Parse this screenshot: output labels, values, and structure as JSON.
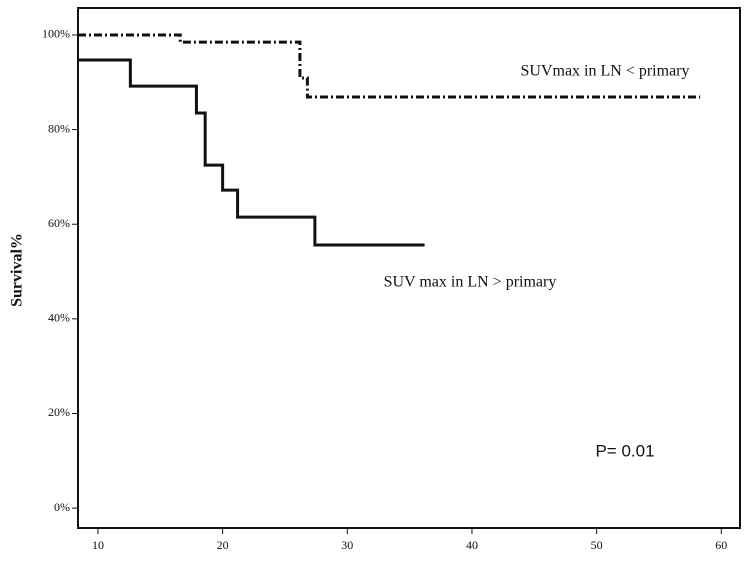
{
  "chart_data": {
    "type": "step",
    "y_label": "Survival%",
    "xlim": [
      8.4,
      61.5
    ],
    "xticks": [
      10,
      20,
      30,
      40,
      50,
      60
    ],
    "ylim": [
      -4.2,
      105.7
    ],
    "yticks": [
      {
        "value": 0,
        "label": "0%"
      },
      {
        "value": 20,
        "label": "20%"
      },
      {
        "value": 40,
        "label": "40%"
      },
      {
        "value": 60,
        "label": "60%"
      },
      {
        "value": 80,
        "label": "80%"
      },
      {
        "value": 100,
        "label": "100%"
      }
    ],
    "series": [
      {
        "name": "SUVmax in LN < primary",
        "color": "#111111",
        "line_style": "dash-dot",
        "x": [
          8.4,
          16.6,
          26.2,
          26.8,
          58.3
        ],
        "values": [
          100,
          98.5,
          90.9,
          86.9,
          86.9
        ]
      },
      {
        "name": "SUV max in LN > primary",
        "color": "#111111",
        "line_style": "solid",
        "x": [
          8.4,
          12.6,
          17.9,
          18.6,
          20.0,
          21.2,
          27.4,
          36.2
        ],
        "values": [
          94.7,
          89.2,
          83.5,
          72.5,
          67.2,
          61.5,
          55.6,
          55.6
        ]
      }
    ],
    "annotations": [
      "P= 0.01"
    ]
  }
}
